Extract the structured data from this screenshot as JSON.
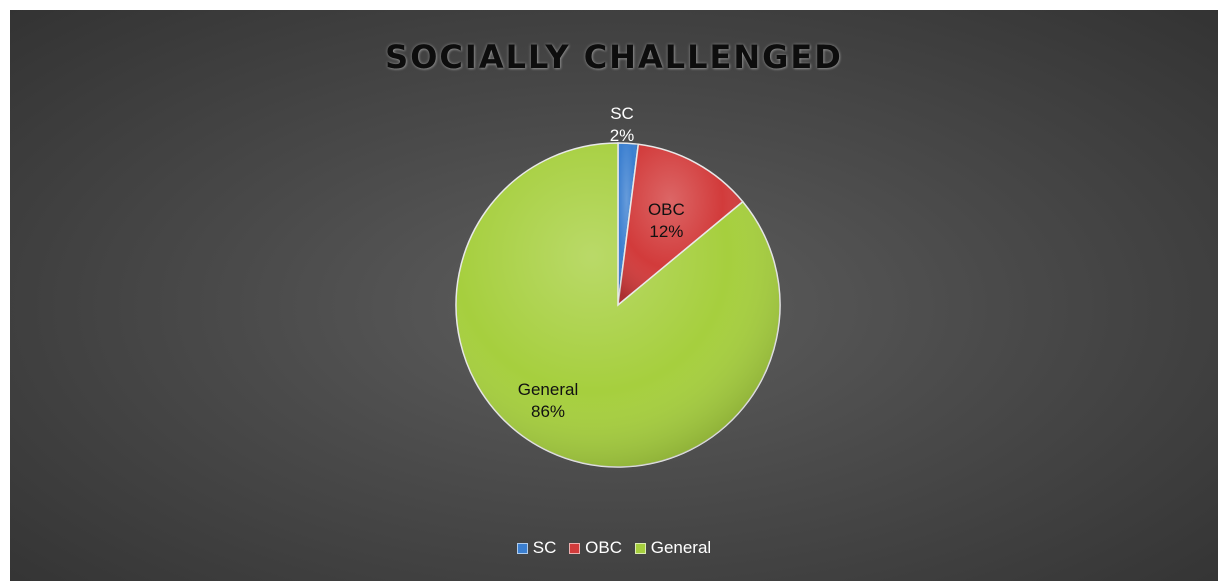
{
  "chart_data": {
    "type": "pie",
    "title": "SOCIALLY CHALLENGED",
    "legend_position": "bottom",
    "slices": [
      {
        "label": "SC",
        "percent": 2,
        "percent_label": "2%",
        "color": "#3b7fd0"
      },
      {
        "label": "OBC",
        "percent": 12,
        "percent_label": "12%",
        "color": "#d23b3b"
      },
      {
        "label": "General",
        "percent": 86,
        "percent_label": "86%",
        "color": "#a6cf3e"
      }
    ]
  }
}
